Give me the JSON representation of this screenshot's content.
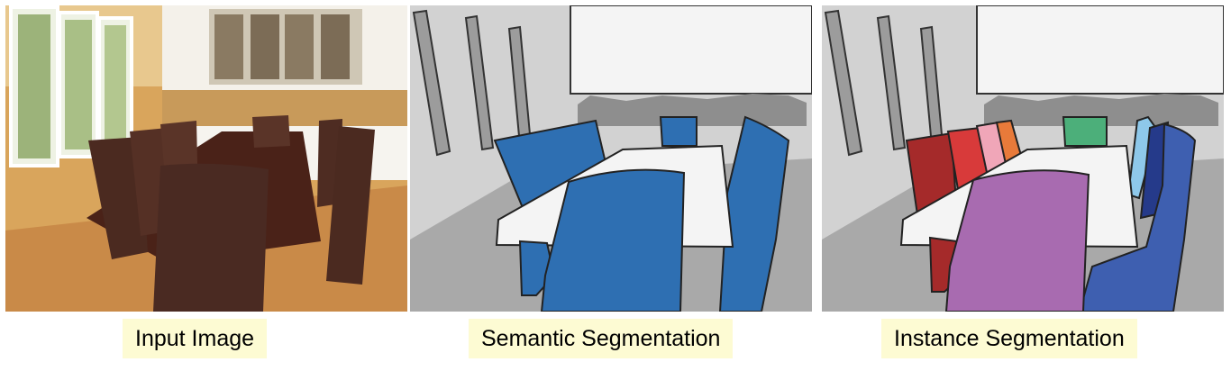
{
  "captions": {
    "input": "Input Image",
    "semantic": "Semantic Segmentation",
    "instance": "Instance Segmentation"
  },
  "colors": {
    "caption_bg": "#fdfbd3",
    "wall": "#d2d2d2",
    "ceiling_window": "#f4f4f4",
    "floor": "#a9a9a9",
    "chair_semantic": "#2e6fb2",
    "table": "#f4f4f4",
    "chair_red_dark": "#a52a2a",
    "chair_red": "#d83a3a",
    "chair_pink": "#f0a6b8",
    "chair_orange": "#e87a3a",
    "chair_green": "#4caf7a",
    "chair_light_blue": "#8ec8ea",
    "chair_navy": "#253a8a",
    "chair_blue": "#3e5fb0",
    "chair_purple": "#a86bb0"
  }
}
